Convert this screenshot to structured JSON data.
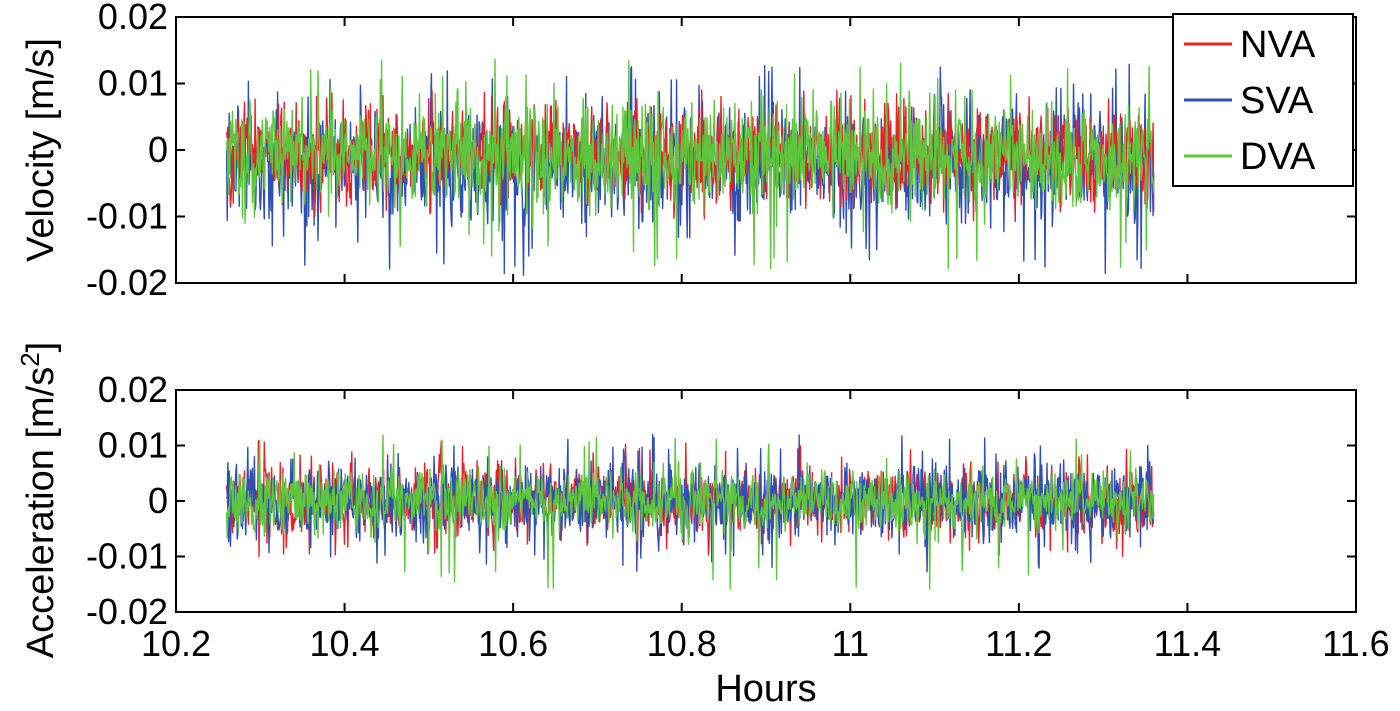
{
  "chart_data": [
    {
      "type": "line",
      "ylabel": "Velocity [m/s]",
      "xlim": [
        10.2,
        11.6
      ],
      "ylim": [
        -0.02,
        0.02
      ],
      "x_range": [
        10.26,
        11.36
      ],
      "yticks": [
        {
          "value": 0.02,
          "label": "0.02"
        },
        {
          "value": 0.01,
          "label": "0.01"
        },
        {
          "value": 0,
          "label": "0"
        },
        {
          "value": -0.01,
          "label": "-0.01"
        },
        {
          "value": -0.02,
          "label": "-0.02"
        }
      ],
      "series": [
        {
          "name": "SVA",
          "color": "#2f4fb5",
          "mean": -0.002,
          "typical_range": [
            -0.012,
            0.008
          ],
          "peak_range": [
            -0.019,
            0.013
          ]
        },
        {
          "name": "NVA",
          "color": "#e8202a",
          "mean": -0.0005,
          "typical_range": [
            -0.008,
            0.007
          ],
          "peak_range": [
            -0.011,
            0.009
          ]
        },
        {
          "name": "DVA",
          "color": "#5ec63d",
          "mean": -0.001,
          "typical_range": [
            -0.009,
            0.009
          ],
          "peak_range": [
            -0.018,
            0.014
          ]
        }
      ],
      "legend": {
        "placement": "top-right",
        "entries": [
          "NVA",
          "SVA",
          "DVA"
        ]
      }
    },
    {
      "type": "line",
      "ylabel": "Acceleration [m/s",
      "ylabel_superscript": "2",
      "ylabel_suffix": "]",
      "xlabel": "Hours",
      "xlim": [
        10.2,
        11.6
      ],
      "ylim": [
        -0.02,
        0.02
      ],
      "x_range": [
        10.26,
        11.36
      ],
      "xticks": [
        {
          "value": 10.2,
          "label": "10.2"
        },
        {
          "value": 10.4,
          "label": "10.4"
        },
        {
          "value": 10.6,
          "label": "10.6"
        },
        {
          "value": 10.8,
          "label": "10.8"
        },
        {
          "value": 11,
          "label": "11"
        },
        {
          "value": 11.2,
          "label": "11.2"
        },
        {
          "value": 11.4,
          "label": "11.4"
        },
        {
          "value": 11.6,
          "label": "11.6"
        }
      ],
      "yticks": [
        {
          "value": 0.02,
          "label": "0.02"
        },
        {
          "value": 0.01,
          "label": "0.01"
        },
        {
          "value": 0,
          "label": "0"
        },
        {
          "value": -0.01,
          "label": "-0.01"
        },
        {
          "value": -0.02,
          "label": "-0.02"
        }
      ],
      "series": [
        {
          "name": "NVA",
          "color": "#e8202a",
          "mean": 0,
          "typical_range": [
            -0.007,
            0.007
          ],
          "peak_range": [
            -0.01,
            0.011
          ]
        },
        {
          "name": "SVA",
          "color": "#2f4fb5",
          "mean": 0,
          "typical_range": [
            -0.008,
            0.008
          ],
          "peak_range": [
            -0.013,
            0.012
          ]
        },
        {
          "name": "DVA",
          "color": "#5ec63d",
          "mean": 0,
          "typical_range": [
            -0.006,
            0.006
          ],
          "peak_range": [
            -0.016,
            0.012
          ]
        }
      ]
    }
  ]
}
